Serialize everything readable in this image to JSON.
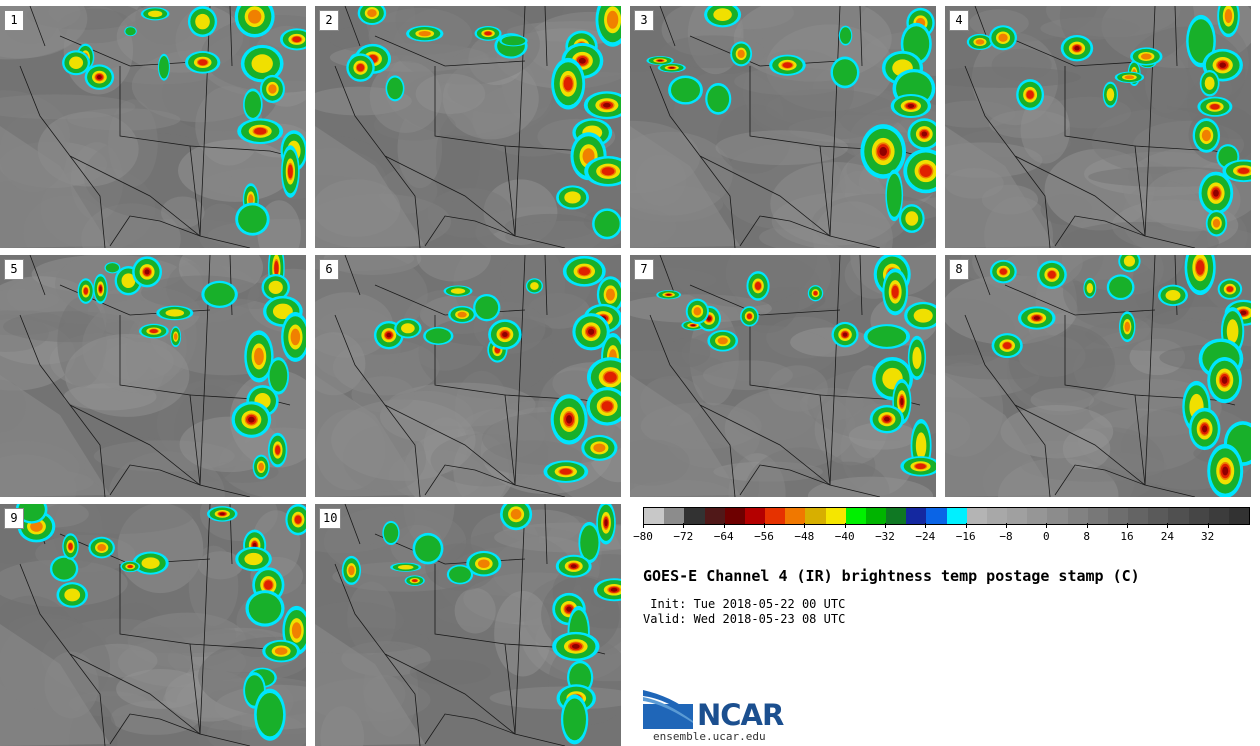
{
  "panels": [
    {
      "label": "1"
    },
    {
      "label": "2"
    },
    {
      "label": "3"
    },
    {
      "label": "4"
    },
    {
      "label": "5"
    },
    {
      "label": "6"
    },
    {
      "label": "7"
    },
    {
      "label": "8"
    },
    {
      "label": "9"
    },
    {
      "label": "10"
    }
  ],
  "colorbar": {
    "colors": [
      "#c8c8c8",
      "#8c8c8c",
      "#323232",
      "#501818",
      "#6e0000",
      "#b40000",
      "#e63200",
      "#f07800",
      "#d7af00",
      "#f5e600",
      "#00f000",
      "#00b400",
      "#0f7823",
      "#1428a0",
      "#0a64e6",
      "#00f0ff",
      "#b4b4b4",
      "#a8a8a8",
      "#a0a0a0",
      "#969696",
      "#8c8c8c",
      "#828282",
      "#787878",
      "#6e6e6e",
      "#646464",
      "#5a5a5a",
      "#505050",
      "#464646",
      "#3c3c3c",
      "#323232"
    ],
    "tick_labels": [
      "−80",
      "−72",
      "−64",
      "−56",
      "−48",
      "−40",
      "−32",
      "−24",
      "−16",
      "−8",
      "0",
      "8",
      "16",
      "24",
      "32"
    ]
  },
  "title": "GOES-E Channel 4 (IR) brightness temp postage stamp (C)",
  "init_line": " Init: Tue 2018-05-22 00 UTC",
  "valid_line": "Valid: Wed 2018-05-23 08 UTC",
  "logo": {
    "text": "NCAR",
    "site": "ensemble.ucar.edu"
  }
}
